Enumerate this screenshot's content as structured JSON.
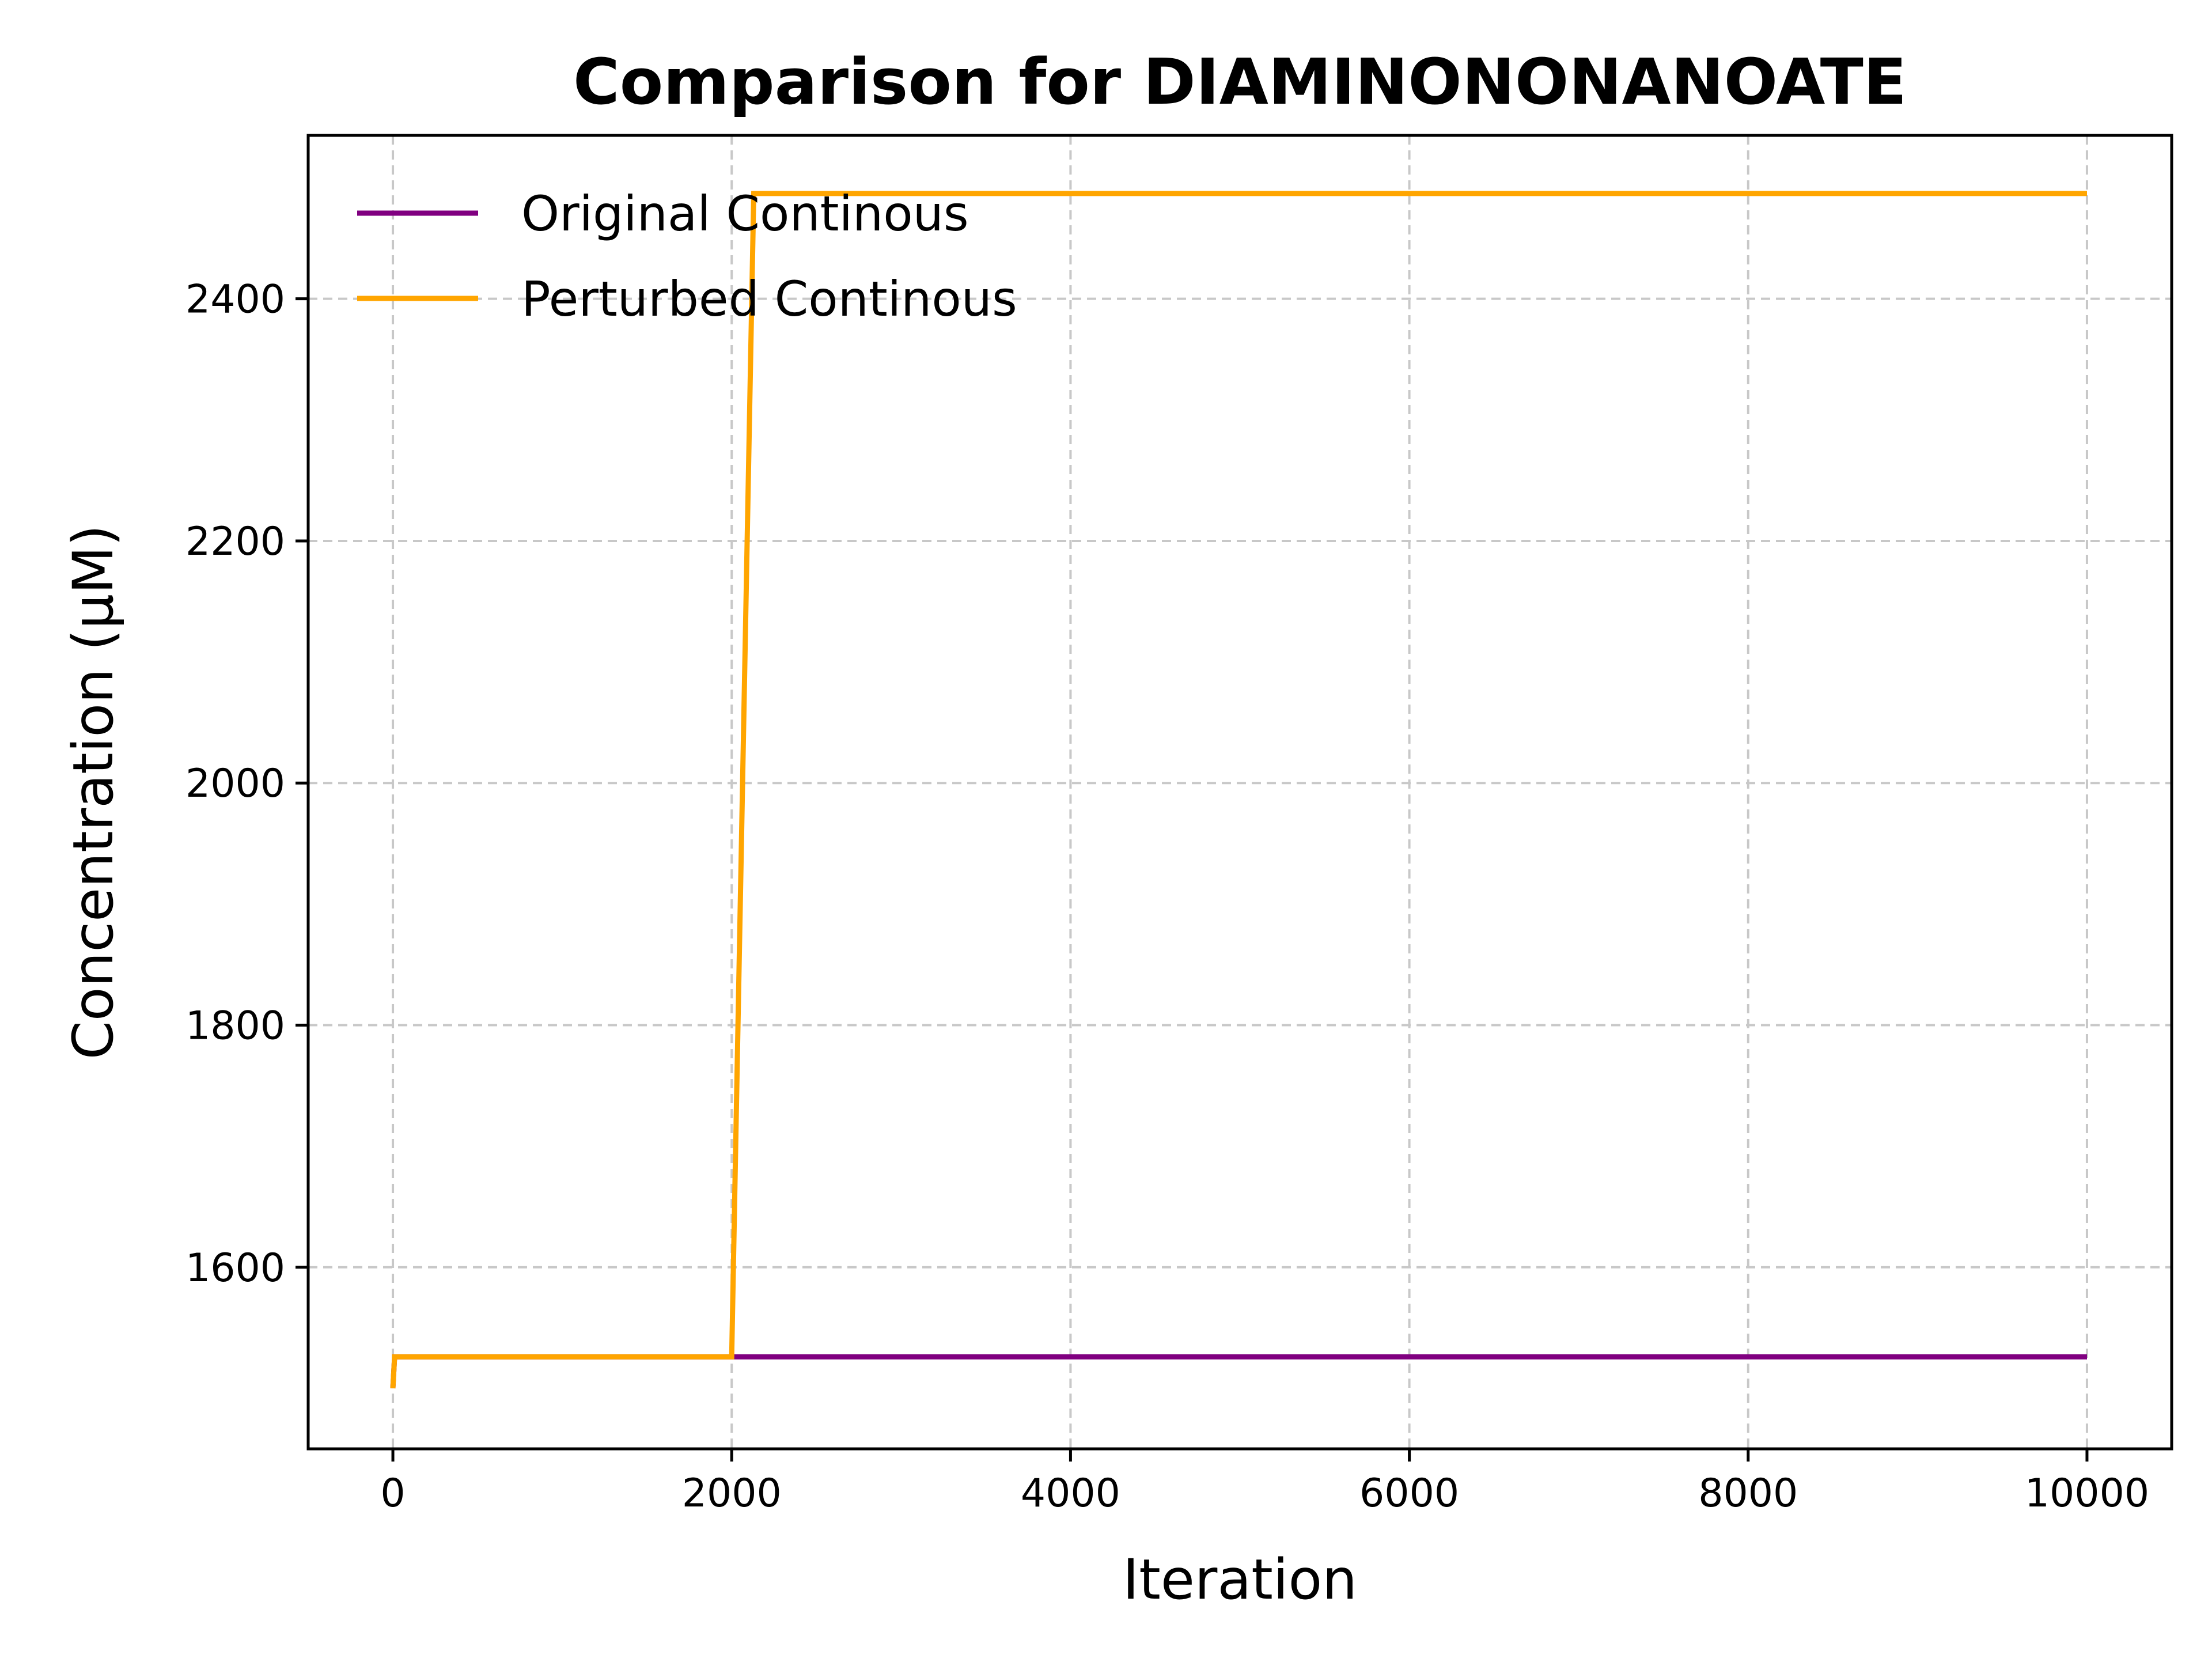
{
  "chart_data": {
    "type": "line",
    "title": "Comparison for DIAMINONONANOATE",
    "xlabel": "Iteration",
    "ylabel": "Concentration (μM)",
    "xlim": [
      -500,
      10500
    ],
    "ylim": [
      1450,
      2535
    ],
    "xticks": [
      0,
      2000,
      4000,
      6000,
      8000,
      10000
    ],
    "yticks": [
      1600,
      1800,
      2000,
      2200,
      2400
    ],
    "grid": true,
    "grid_style": "dashed",
    "legend_position": "upper-left",
    "series": [
      {
        "name": "Original Continous",
        "color": "#800080",
        "x": [
          0,
          10,
          2000,
          10000
        ],
        "y": [
          1500,
          1526,
          1526,
          1526
        ]
      },
      {
        "name": "Perturbed Continous",
        "color": "#FFA500",
        "x": [
          0,
          10,
          2000,
          2130,
          10000
        ],
        "y": [
          1500,
          1526,
          1526,
          2487,
          2487
        ]
      }
    ]
  }
}
